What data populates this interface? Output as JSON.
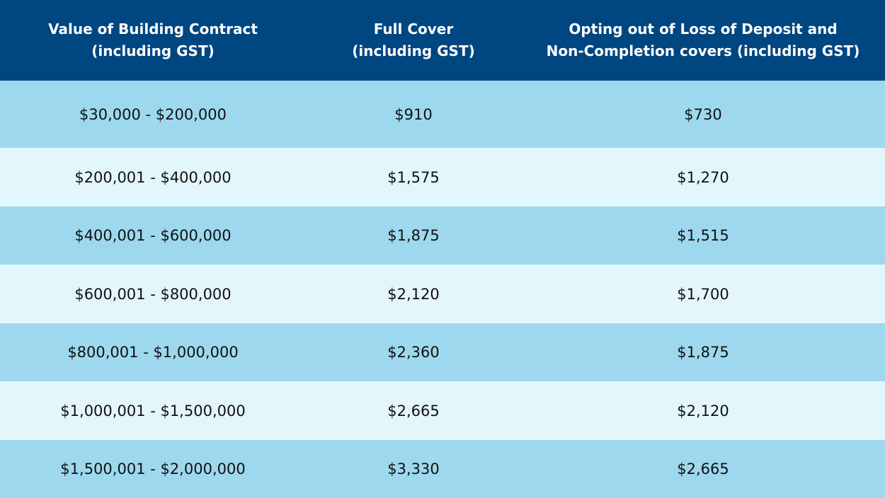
{
  "headers": [
    {
      "line1": "Value of Building Contract",
      "line2": "(including GST)"
    },
    {
      "line1": "Full Cover",
      "line2": "(including GST)"
    },
    {
      "line1": "Opting out of Loss of Deposit and",
      "line2": "Non-Completion covers (including GST)"
    }
  ],
  "rows": [
    {
      "range": "$30,000 - $200,000",
      "full": "$910",
      "opt": "$730"
    },
    {
      "range": "$200,001 - $400,000",
      "full": "$1,575",
      "opt": "$1,270"
    },
    {
      "range": "$400,001 - $600,000",
      "full": "$1,875",
      "opt": "$1,515"
    },
    {
      "range": "$600,001 - $800,000",
      "full": "$2,120",
      "opt": "$1,700"
    },
    {
      "range": "$800,001 - $1,000,000",
      "full": "$2,360",
      "opt": "$1,875"
    },
    {
      "range": "$1,000,001 - $1,500,000",
      "full": "$2,665",
      "opt": "$2,120"
    },
    {
      "range": "$1,500,001 - $2,000,000",
      "full": "$3,330",
      "opt": "$2,665"
    }
  ],
  "colors": {
    "header_bg": "#004680",
    "row_dark": "#9dd8ee",
    "row_light": "#e3f6fc"
  }
}
